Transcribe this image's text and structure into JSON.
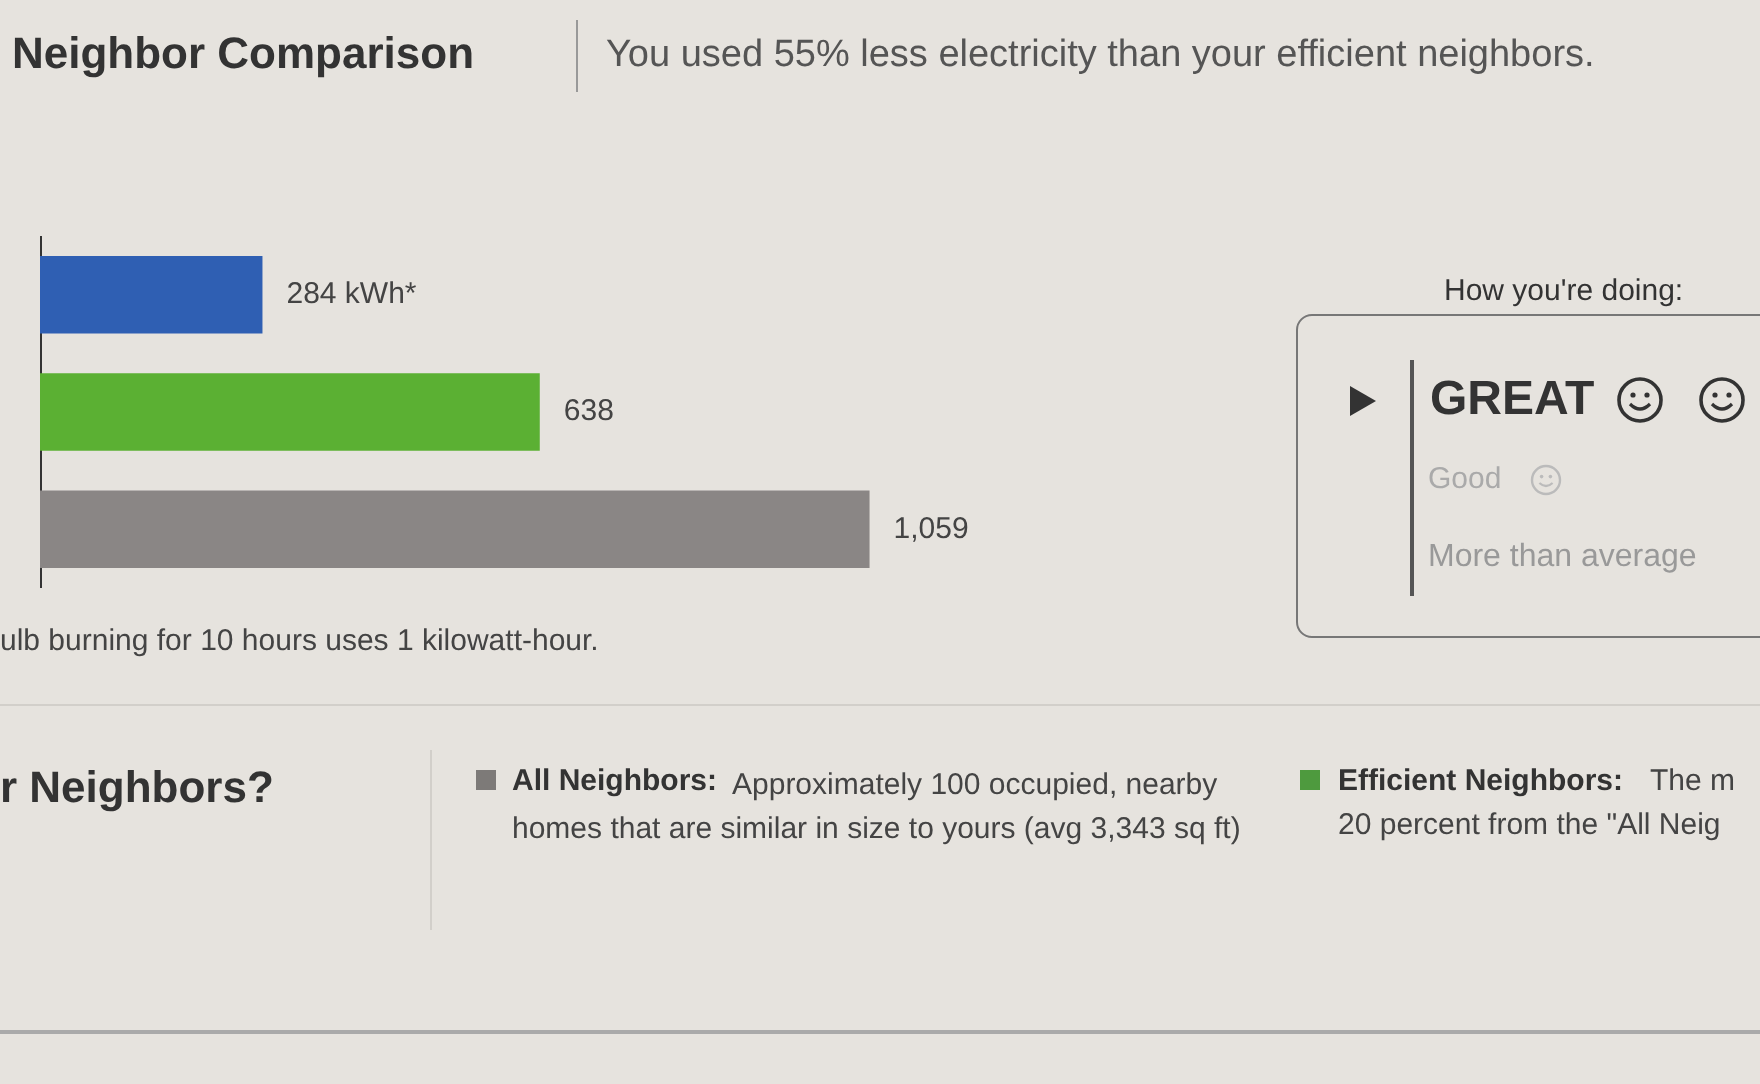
{
  "chart_data": {
    "type": "bar",
    "orientation": "horizontal",
    "title": "Neighbor Comparison",
    "subtitle": "You used 55% less electricity than your efficient neighbors.",
    "categories": [
      null,
      null,
      null
    ],
    "values": [
      284,
      638,
      1059
    ],
    "colors": [
      "#2f5fb3",
      "#5bb033",
      "#8a8685"
    ],
    "value_labels": [
      "284 kWh*",
      "638",
      "1,059"
    ],
    "annotations": [
      "ulb burning for 10 hours uses 1 kilowatt-hour.",
      "How you're doing:",
      "GREAT",
      "Good",
      "More than average",
      "r Neighbors?",
      "All Neighbors:",
      "Approximately 100 occupied, nearby homes that are similar in size to yours (avg 3,343 sq ft)",
      "Efficient Neighbors:",
      "The m",
      "20 percent from the \"All Neig"
    ],
    "grid": false,
    "legend": false
  }
}
